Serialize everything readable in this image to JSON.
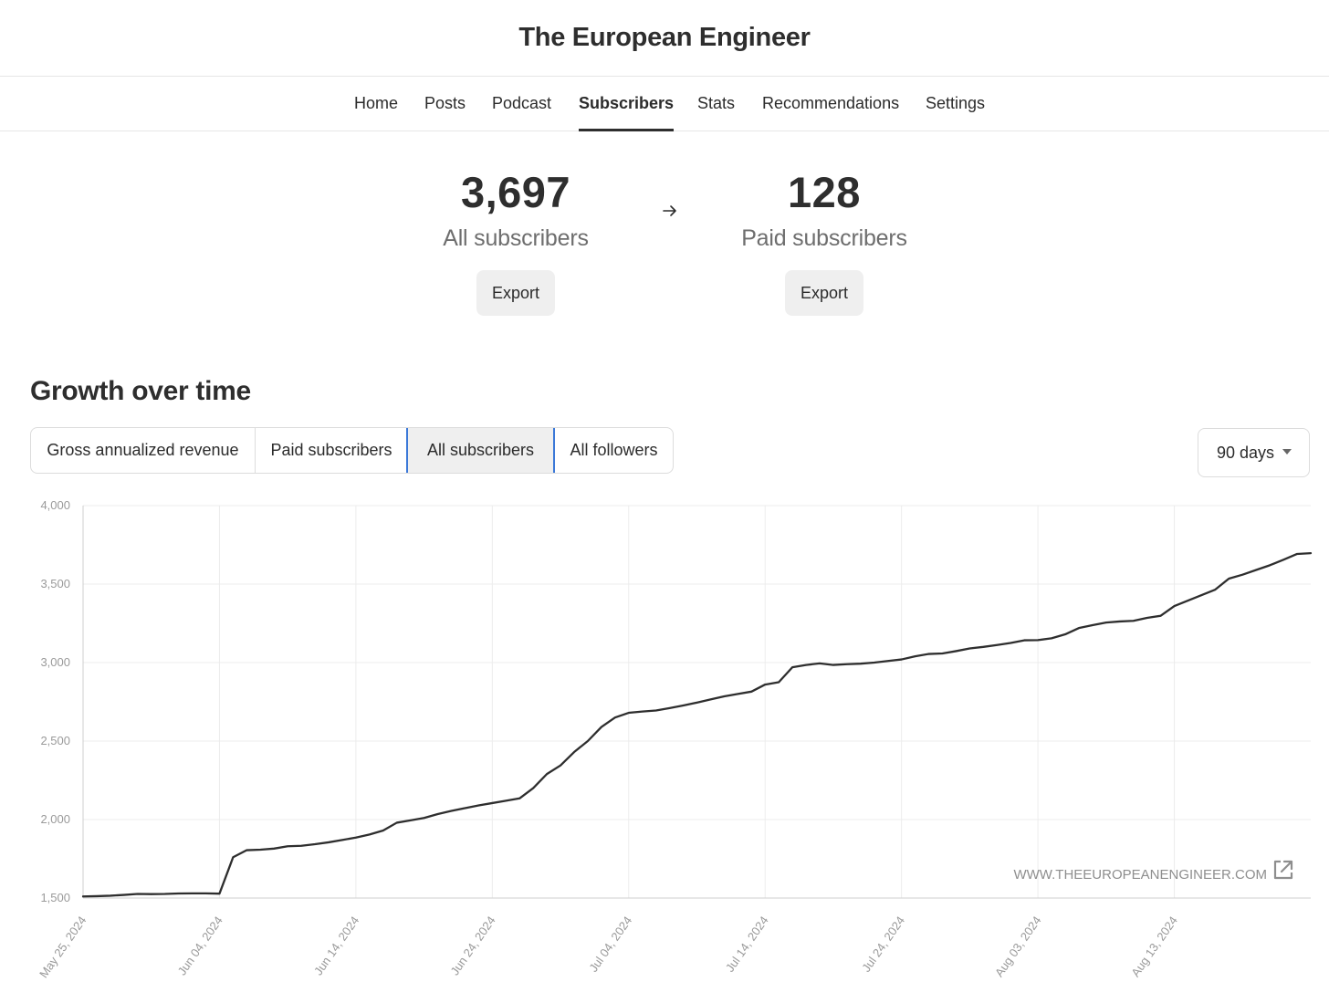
{
  "site": {
    "title": "The European Engineer"
  },
  "nav": {
    "items": [
      {
        "label": "Home"
      },
      {
        "label": "Posts"
      },
      {
        "label": "Podcast"
      },
      {
        "label": "Subscribers",
        "active": true
      },
      {
        "label": "Stats"
      },
      {
        "label": "Recommendations"
      },
      {
        "label": "Settings"
      }
    ]
  },
  "stats": {
    "all": {
      "value": "3,697",
      "label": "All subscribers",
      "export_label": "Export"
    },
    "paid": {
      "value": "128",
      "label": "Paid subscribers",
      "export_label": "Export"
    },
    "arrow_icon": "arrow-right-icon"
  },
  "growth": {
    "title": "Growth over time",
    "tabs": [
      {
        "label": "Gross annualized revenue"
      },
      {
        "label": "Paid subscribers"
      },
      {
        "label": "All subscribers",
        "selected": true
      },
      {
        "label": "All followers"
      }
    ],
    "range": {
      "selected": "90 days",
      "caret_icon": "caret-down-icon"
    }
  },
  "colors": {
    "line": "#2e2e2e",
    "grid": "#ececec",
    "tab_accent": "#3b78d8"
  },
  "chart_data": {
    "type": "line",
    "series": [
      {
        "x": [
          "2024-05-25",
          "2024-05-26",
          "2024-05-27",
          "2024-05-28",
          "2024-05-29",
          "2024-05-30",
          "2024-05-31",
          "2024-06-01",
          "2024-06-02",
          "2024-06-03",
          "2024-06-04",
          "2024-06-05",
          "2024-06-06",
          "2024-06-07",
          "2024-06-08",
          "2024-06-09",
          "2024-06-10",
          "2024-06-11",
          "2024-06-12",
          "2024-06-13",
          "2024-06-14",
          "2024-06-15",
          "2024-06-16",
          "2024-06-17",
          "2024-06-18",
          "2024-06-19",
          "2024-06-20",
          "2024-06-21",
          "2024-06-22",
          "2024-06-23",
          "2024-06-24",
          "2024-06-25",
          "2024-06-26",
          "2024-06-27",
          "2024-06-28",
          "2024-06-29",
          "2024-06-30",
          "2024-07-01",
          "2024-07-02",
          "2024-07-03",
          "2024-07-04",
          "2024-07-05",
          "2024-07-06",
          "2024-07-07",
          "2024-07-08",
          "2024-07-09",
          "2024-07-10",
          "2024-07-11",
          "2024-07-12",
          "2024-07-13",
          "2024-07-14",
          "2024-07-15",
          "2024-07-16",
          "2024-07-17",
          "2024-07-18",
          "2024-07-19",
          "2024-07-20",
          "2024-07-21",
          "2024-07-22",
          "2024-07-23",
          "2024-07-24",
          "2024-07-25",
          "2024-07-26",
          "2024-07-27",
          "2024-07-28",
          "2024-07-29",
          "2024-07-30",
          "2024-07-31",
          "2024-08-01",
          "2024-08-02",
          "2024-08-03",
          "2024-08-04",
          "2024-08-05",
          "2024-08-06",
          "2024-08-07",
          "2024-08-08",
          "2024-08-09",
          "2024-08-10",
          "2024-08-11",
          "2024-08-12",
          "2024-08-13",
          "2024-08-14",
          "2024-08-15",
          "2024-08-16",
          "2024-08-17",
          "2024-08-18",
          "2024-08-19",
          "2024-08-20",
          "2024-08-21",
          "2024-08-22",
          "2024-08-23"
        ],
        "values": [
          1510,
          1512,
          1515,
          1520,
          1526,
          1525,
          1526,
          1529,
          1530,
          1530,
          1528,
          1760,
          1805,
          1808,
          1815,
          1830,
          1833,
          1843,
          1855,
          1870,
          1885,
          1905,
          1930,
          1980,
          1995,
          2010,
          2035,
          2055,
          2073,
          2090,
          2105,
          2120,
          2135,
          2200,
          2290,
          2345,
          2430,
          2500,
          2590,
          2650,
          2680,
          2688,
          2695,
          2710,
          2727,
          2745,
          2765,
          2785,
          2800,
          2815,
          2860,
          2875,
          2970,
          2985,
          2995,
          2985,
          2990,
          2993,
          3000,
          3010,
          3020,
          3040,
          3055,
          3058,
          3073,
          3090,
          3100,
          3112,
          3125,
          3142,
          3143,
          3155,
          3180,
          3220,
          3238,
          3255,
          3262,
          3266,
          3285,
          3298,
          3360,
          3395,
          3430,
          3465,
          3535,
          3560,
          3590,
          3620,
          3655,
          3692,
          3697
        ]
      }
    ],
    "x_ticks": [
      "May 25, 2024",
      "Jun 04, 2024",
      "Jun 14, 2024",
      "Jun 24, 2024",
      "Jul 04, 2024",
      "Jul 14, 2024",
      "Jul 24, 2024",
      "Aug 03, 2024",
      "Aug 13, 2024"
    ],
    "y_ticks": [
      "1,500",
      "2,000",
      "2,500",
      "3,000",
      "3,500",
      "4,000"
    ],
    "ylim": [
      1500,
      4000
    ],
    "grid": true,
    "watermark": "WWW.THEEUROPEANENGINEER.COM",
    "watermark_icon": "external-link-icon"
  }
}
